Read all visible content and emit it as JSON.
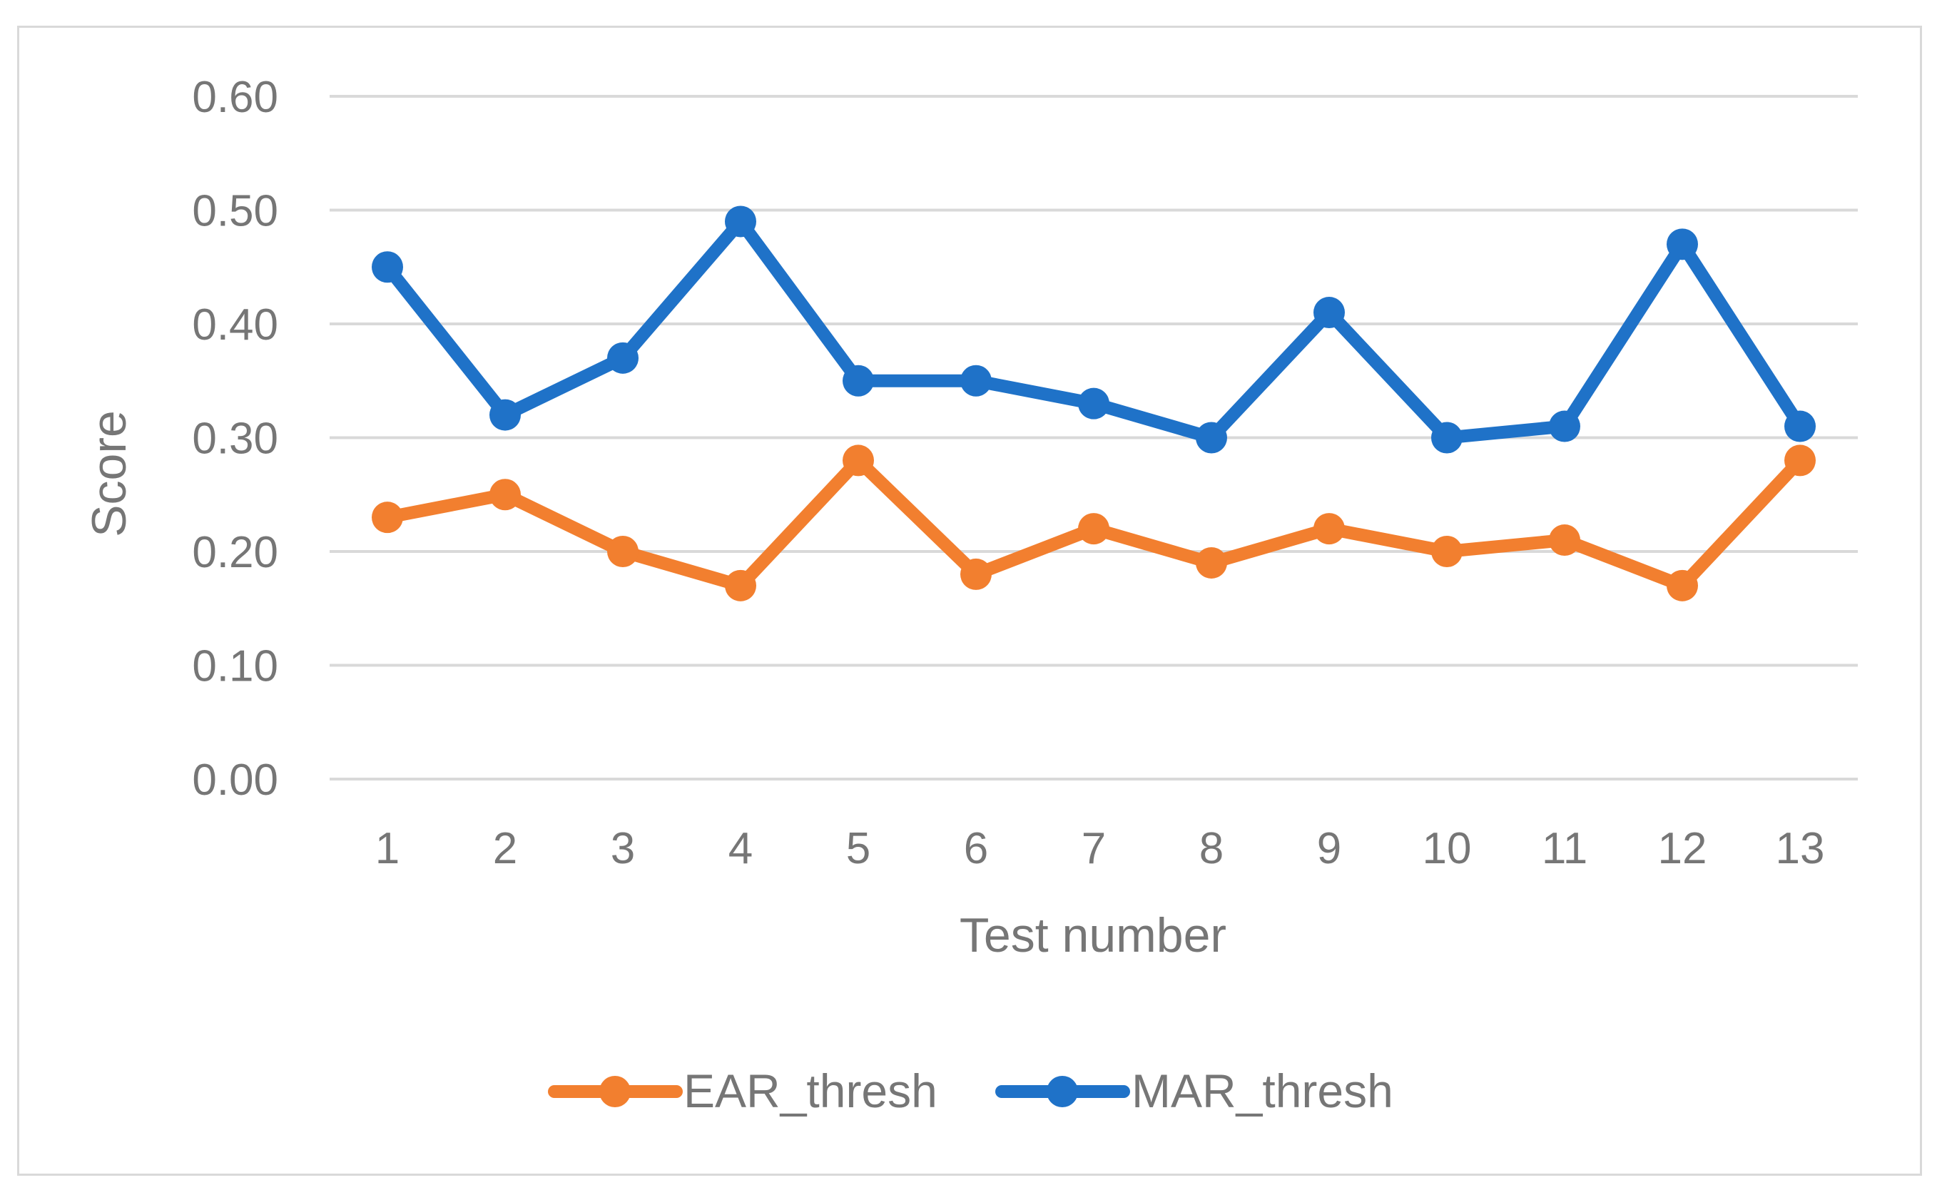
{
  "chart_data": {
    "type": "line",
    "title": "",
    "xlabel": "Test number",
    "ylabel": "Score",
    "x": [
      1,
      2,
      3,
      4,
      5,
      6,
      7,
      8,
      9,
      10,
      11,
      12,
      13
    ],
    "x_tick_labels": [
      "1",
      "2",
      "3",
      "4",
      "5",
      "6",
      "7",
      "8",
      "9",
      "10",
      "11",
      "12",
      "13"
    ],
    "ylim": [
      0,
      0.6
    ],
    "y_ticks": [
      0,
      0.1,
      0.2,
      0.3,
      0.4,
      0.5,
      0.6
    ],
    "y_tick_labels": [
      "0.00",
      "0.10",
      "0.20",
      "0.30",
      "0.40",
      "0.50",
      "0.60"
    ],
    "grid": "horizontal",
    "legend_position": "bottom",
    "series": [
      {
        "name": "EAR_thresh",
        "color": "#f27f2f",
        "values": [
          0.23,
          0.25,
          0.2,
          0.17,
          0.28,
          0.18,
          0.22,
          0.19,
          0.22,
          0.2,
          0.21,
          0.17,
          0.28
        ]
      },
      {
        "name": "MAR_thresh",
        "color": "#1f72c8",
        "values": [
          0.45,
          0.32,
          0.37,
          0.49,
          0.35,
          0.35,
          0.33,
          0.3,
          0.41,
          0.3,
          0.31,
          0.47,
          0.31
        ]
      }
    ]
  }
}
